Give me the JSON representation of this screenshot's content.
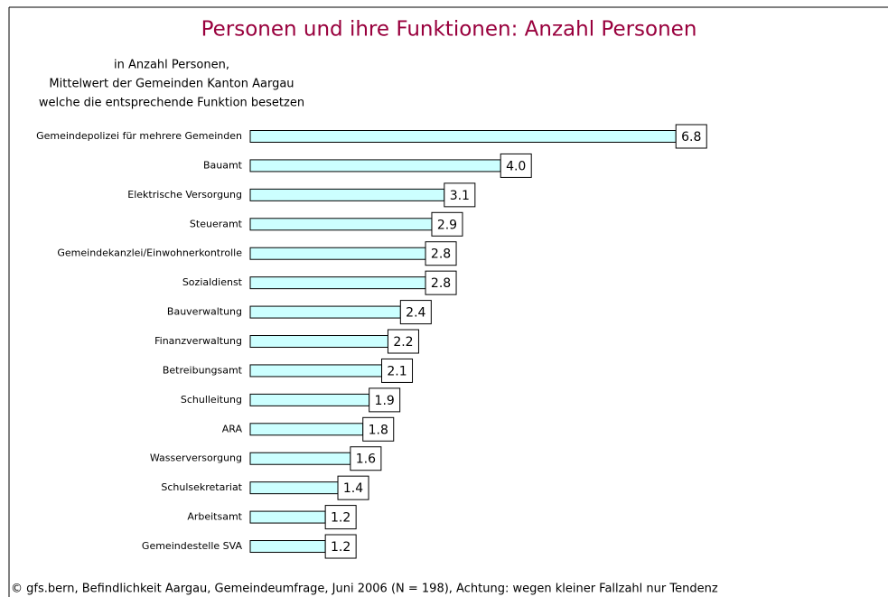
{
  "chart_data": {
    "type": "bar",
    "orientation": "horizontal",
    "title": "Personen und ihre Funktionen: Anzahl Personen",
    "subtitle": [
      "in Anzahl Personen,",
      "Mittelwert der Gemeinden Kanton Aargau",
      "welche die entsprechende Funktion besetzen"
    ],
    "categories": [
      "Gemeindepolizei für mehrere Gemeinden",
      "Bauamt",
      "Elektrische Versorgung",
      "Steueramt",
      "Gemeindekanzlei/Einwohnerkontrolle",
      "Sozialdienst",
      "Bauverwaltung",
      "Finanzverwaltung",
      "Betreibungsamt",
      "Schulleitung",
      "ARA",
      "Wasserversorgung",
      "Schulsekretariat",
      "Arbeitsamt",
      "Gemeindestelle SVA"
    ],
    "values": [
      6.8,
      4.0,
      3.1,
      2.9,
      2.8,
      2.8,
      2.4,
      2.2,
      2.1,
      1.9,
      1.8,
      1.6,
      1.4,
      1.2,
      1.2
    ],
    "value_labels": [
      "6.8",
      "4.0",
      "3.1",
      "2.9",
      "2.8",
      "2.8",
      "2.4",
      "2.2",
      "2.1",
      "1.9",
      "1.8",
      "1.6",
      "1.4",
      "1.2",
      "1.2"
    ],
    "color": "#ccffff",
    "source": "© gfs.bern, Befindlichkeit Aargau, Gemeindeumfrage, Juni 2006 (N = 198), Achtung: wegen kleiner Fallzahl nur Tendenz"
  }
}
